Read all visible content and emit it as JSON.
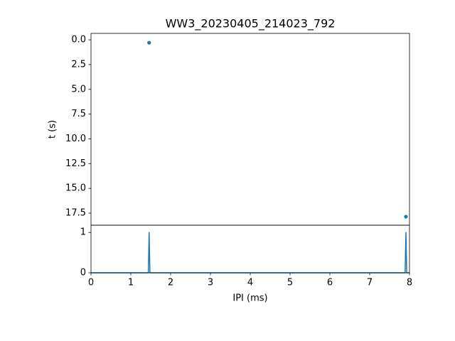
{
  "chart_data": [
    {
      "type": "scatter",
      "title": "WW3_20230405_214023_792",
      "y_label": "t (s)",
      "x": [
        1.46,
        7.91
      ],
      "values": [
        0.29,
        17.86
      ],
      "color": "#1f77b4",
      "xlim": [
        0,
        8
      ],
      "ylim": [
        -0.65,
        18.72
      ],
      "y_inverted": true,
      "yticks": [
        {
          "value": 0,
          "label": "0.0"
        },
        2.5,
        {
          "value": 5,
          "label": "5.0"
        },
        7.5,
        {
          "value": 10,
          "label": "10.0"
        },
        12.5,
        {
          "value": 15,
          "label": "15.0"
        },
        17.5
      ]
    },
    {
      "type": "line",
      "x_label": "IPI (ms)",
      "x": [
        0,
        1.44,
        1.46,
        1.48,
        7.89,
        7.91,
        7.93,
        8
      ],
      "values": [
        0,
        0,
        1,
        0,
        0,
        1,
        0,
        0
      ],
      "color": "#1f77b4",
      "xlim": [
        0,
        8
      ],
      "ylim": [
        0,
        1.18
      ],
      "xticks": [
        0,
        1,
        2,
        3,
        4,
        5,
        6,
        7,
        8
      ],
      "yticks": [
        0,
        1
      ]
    }
  ]
}
